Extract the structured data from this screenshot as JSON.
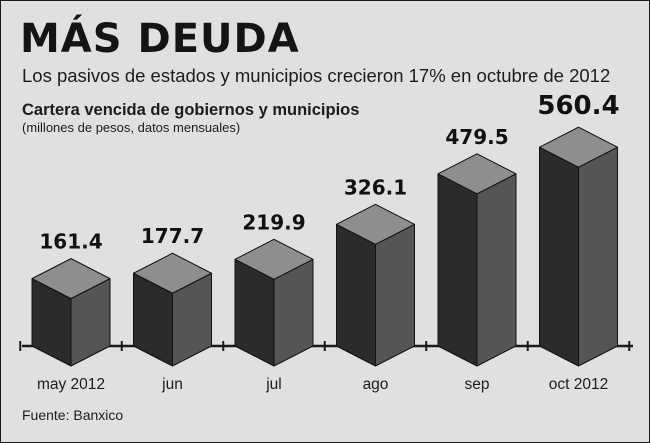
{
  "headline": "MÁS DEUDA",
  "subheadline": "Los pasivos de estados y municipios crecieron 17% en octubre de 2012",
  "source": "Fuente: Banxico",
  "colors": {
    "background": "#e0e0e0",
    "bar_top": "#8e8e8e",
    "bar_front": "#2b2b2b",
    "bar_side": "#555555",
    "axis": "#1a1a1a",
    "text": "#111111"
  },
  "chart_data": {
    "type": "bar",
    "title": "Cartera vencida de gobiernos y municipios",
    "subtitle": "(millones de pesos, datos mensuales)",
    "categories": [
      "may 2012",
      "jun",
      "jul",
      "ago",
      "sep",
      "oct 2012"
    ],
    "values": [
      161.4,
      177.7,
      219.9,
      326.1,
      479.5,
      560.4
    ],
    "data_labels": [
      "161.4",
      "177.7",
      "219.9",
      "326.1",
      "479.5",
      "560.4"
    ],
    "xlabel": "",
    "ylabel": "",
    "ylim": [
      0,
      600
    ],
    "grid": false,
    "legend": "none",
    "style": "3d-cube"
  }
}
